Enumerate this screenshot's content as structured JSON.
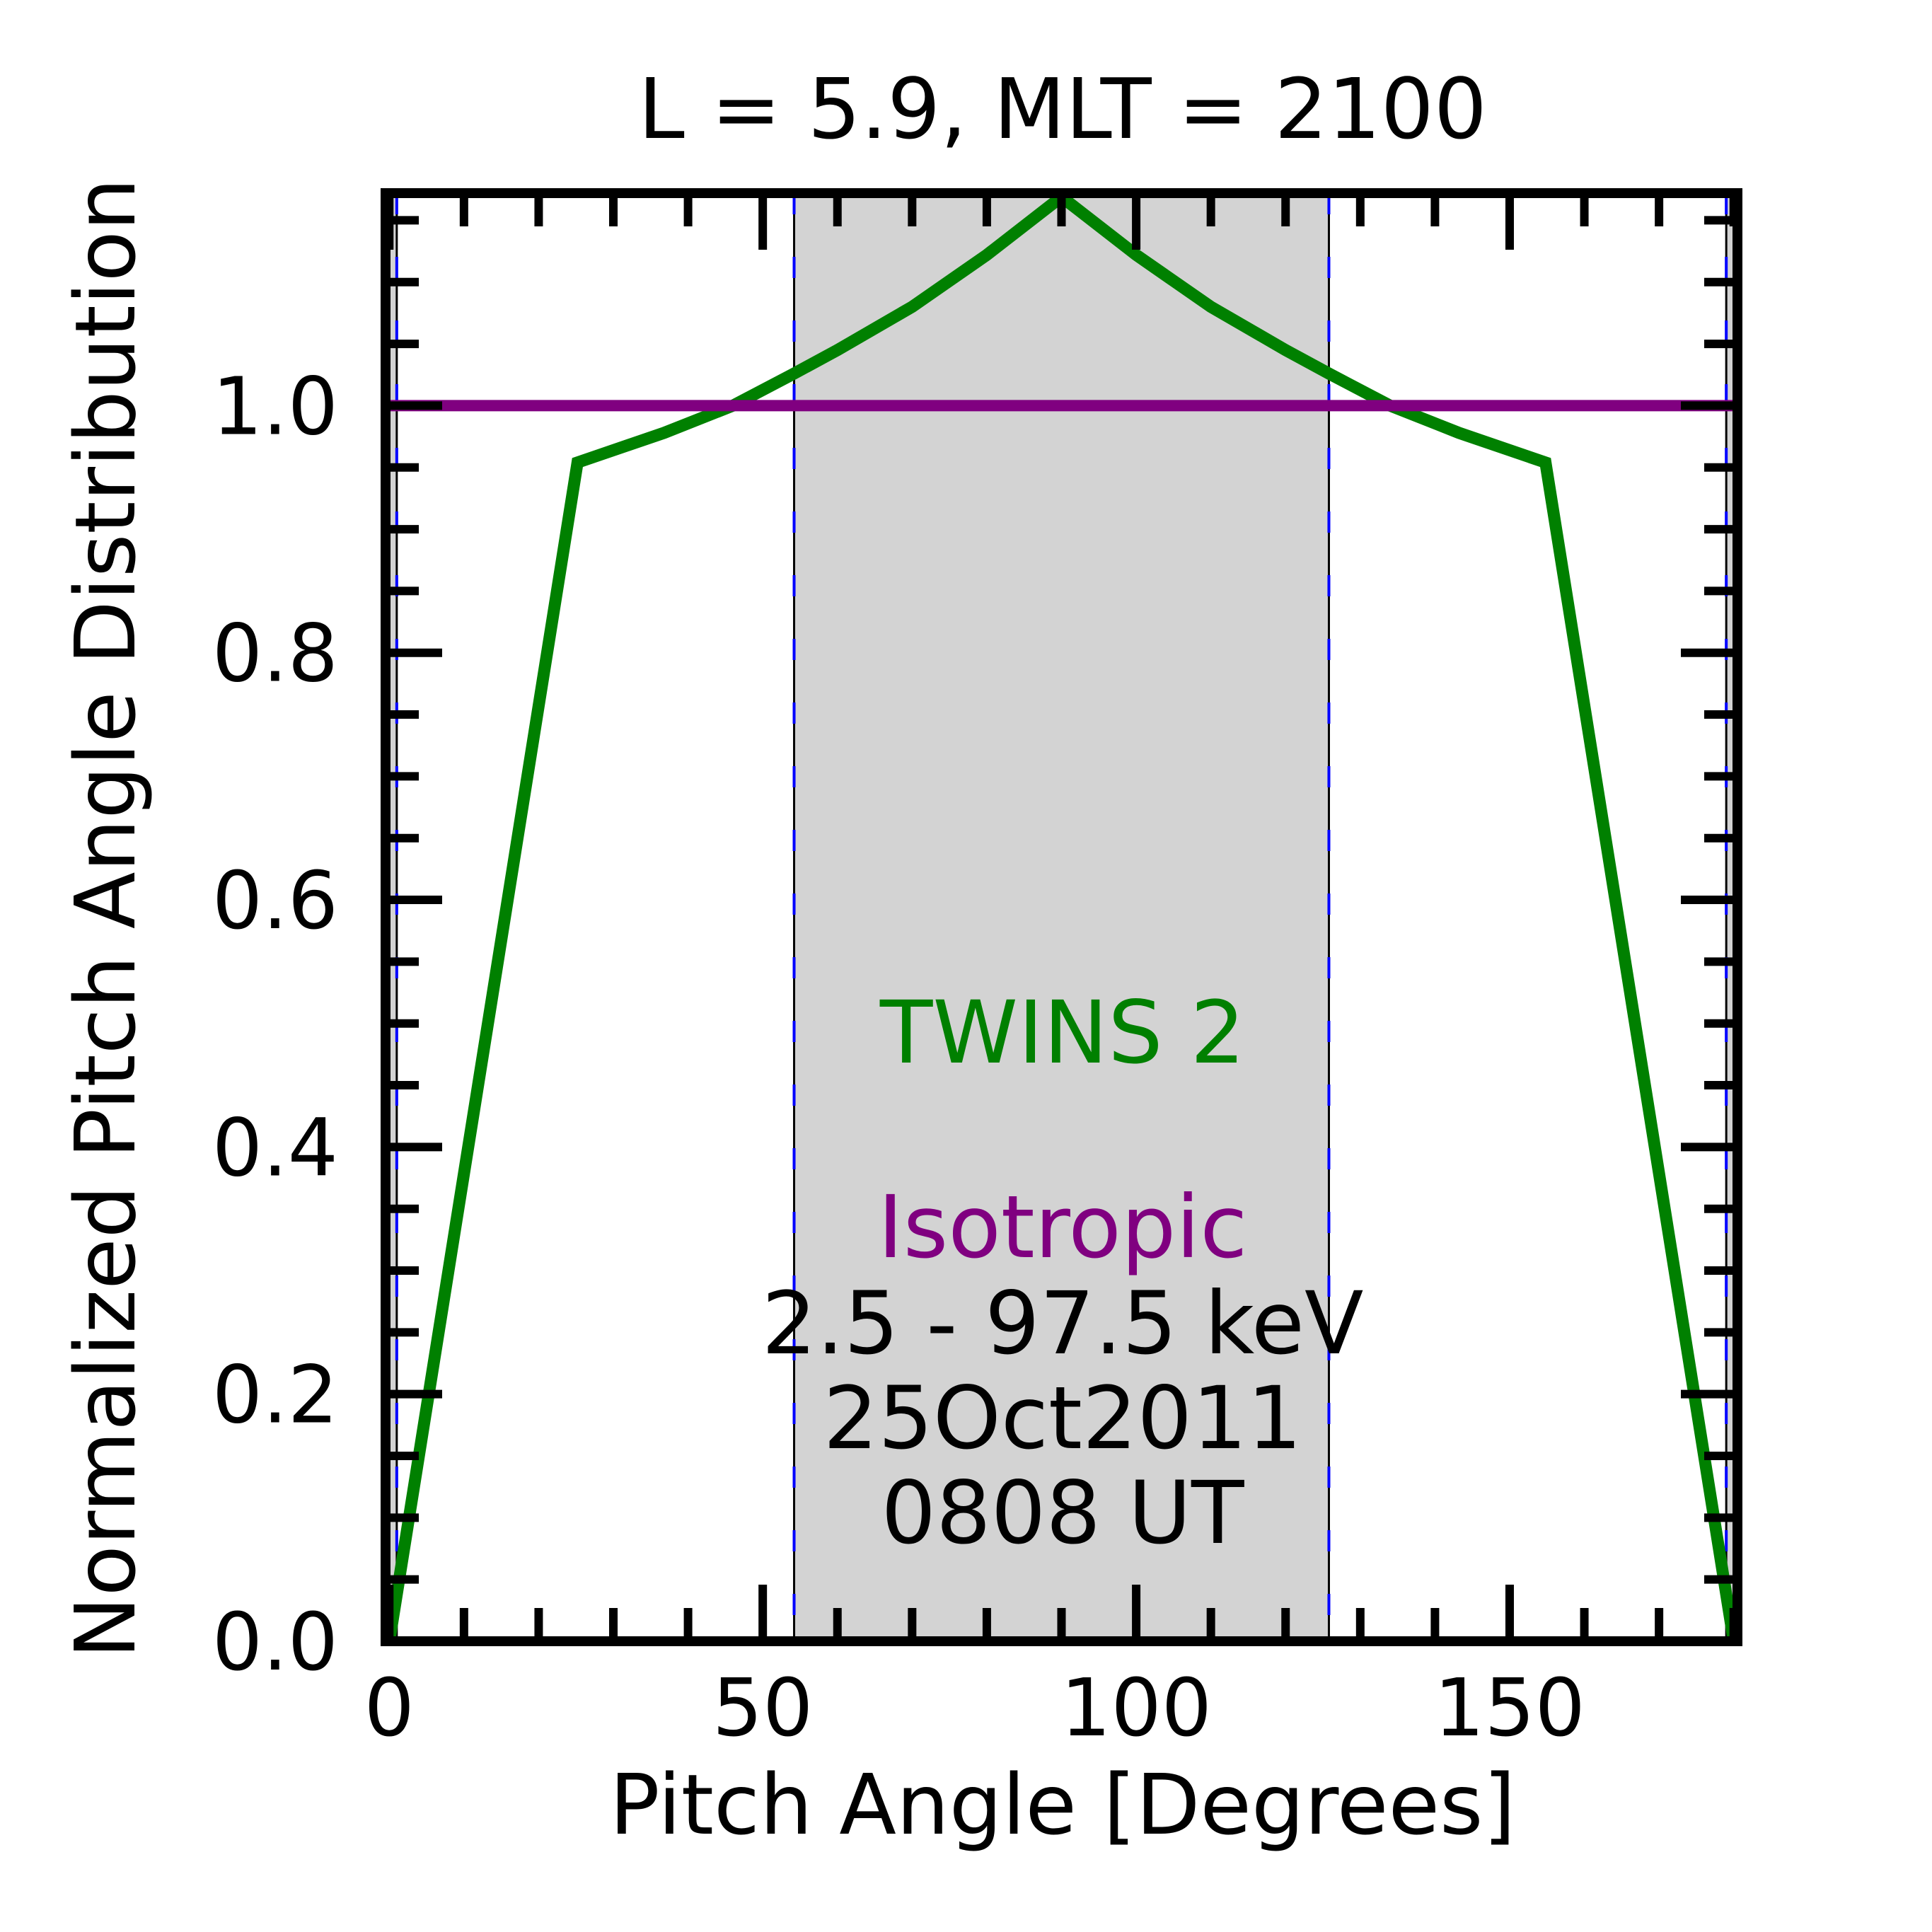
{
  "chart_data": {
    "type": "line",
    "title": "L =  5.9, MLT = 2100",
    "xlabel": "Pitch Angle [Degrees]",
    "ylabel": "Normalized Pitch Angle Distribution",
    "xlim": [
      -0.5,
      180.5
    ],
    "ylim": [
      0,
      1.172
    ],
    "xticks": [
      0,
      50,
      100,
      150
    ],
    "xtick_labels": [
      "0",
      "50",
      "100",
      "150"
    ],
    "x_minor_step": 10,
    "yticks": [
      0.0,
      0.2,
      0.4,
      0.6,
      0.8,
      1.0
    ],
    "ytick_labels": [
      "0.0",
      "0.2",
      "0.4",
      "0.6",
      "0.8",
      "1.0"
    ],
    "y_minor_step": 0.05,
    "grid": false,
    "shaded_regions": [
      [
        0,
        1
      ],
      [
        54.2,
        125.8
      ],
      [
        179,
        180
      ]
    ],
    "vertical_lines": [
      1,
      54.2,
      125.8,
      179
    ],
    "series": [
      {
        "name": "TWINS 2",
        "color": "#008000",
        "x": [
          0,
          25.2,
          36.8,
          46,
          54.2,
          60,
          70,
          80,
          90,
          100,
          110,
          120,
          125.8,
          134,
          143.2,
          154.8,
          180
        ],
        "y": [
          0,
          0.954,
          0.978,
          1.0,
          1.026,
          1.045,
          1.08,
          1.122,
          1.169,
          1.122,
          1.08,
          1.045,
          1.026,
          1.0,
          0.978,
          0.954,
          0
        ]
      },
      {
        "name": "Isotropic",
        "color": "#800080",
        "x": [
          0,
          180
        ],
        "y": [
          1.0,
          1.0
        ]
      }
    ],
    "annotations": {
      "series1": "TWINS 2",
      "series2": "Isotropic",
      "energy": "2.5 - 97.5 keV",
      "date": "25Oct2011",
      "time": "0808 UT"
    },
    "colors": {
      "shade": "#d3d3d3",
      "vline": "#0000ff",
      "text": "#000000"
    }
  }
}
